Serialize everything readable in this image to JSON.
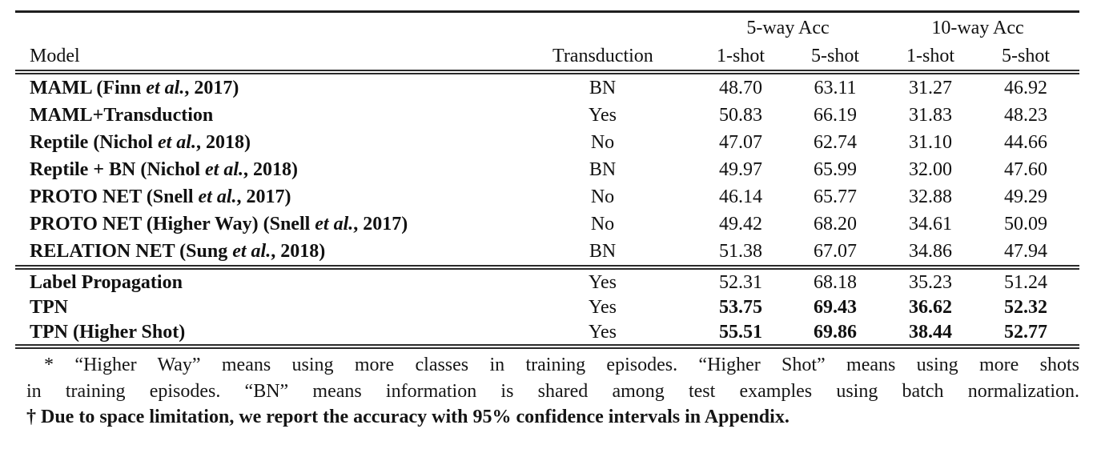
{
  "header": {
    "group_5way": "5-way Acc",
    "group_10way": "10-way Acc",
    "model": "Model",
    "transduction": "Transduction",
    "subcols": [
      "1-shot",
      "5-shot",
      "1-shot",
      "5-shot"
    ]
  },
  "table": {
    "sections": [
      {
        "rows": [
          {
            "model": {
              "pre": "MAML (Finn ",
              "etal": "et al.",
              "post": ", 2017)"
            },
            "transduction": "BN",
            "values": [
              "48.70",
              "63.11",
              "31.27",
              "46.92"
            ],
            "bold_values": false
          },
          {
            "model": {
              "pre": "MAML+Transduction",
              "etal": "",
              "post": ""
            },
            "transduction": "Yes",
            "values": [
              "50.83",
              "66.19",
              "31.83",
              "48.23"
            ],
            "bold_values": false
          },
          {
            "model": {
              "pre": "Reptile (Nichol ",
              "etal": "et al.",
              "post": ", 2018)"
            },
            "transduction": "No",
            "values": [
              "47.07",
              "62.74",
              "31.10",
              "44.66"
            ],
            "bold_values": false
          },
          {
            "model": {
              "pre": "Reptile + BN (Nichol ",
              "etal": "et al.",
              "post": ", 2018)"
            },
            "transduction": "BN",
            "values": [
              "49.97",
              "65.99",
              "32.00",
              "47.60"
            ],
            "bold_values": false
          },
          {
            "model": {
              "pre": "PROTO NET (Snell ",
              "etal": "et al.",
              "post": ", 2017)"
            },
            "transduction": "No",
            "values": [
              "46.14",
              "65.77",
              "32.88",
              "49.29"
            ],
            "bold_values": false
          },
          {
            "model": {
              "pre": "PROTO NET (Higher Way) (Snell ",
              "etal": "et al.",
              "post": ", 2017)"
            },
            "transduction": "No",
            "values": [
              "49.42",
              "68.20",
              "34.61",
              "50.09"
            ],
            "bold_values": false
          },
          {
            "model": {
              "pre": "RELATION NET (Sung ",
              "etal": "et al.",
              "post": ", 2018)"
            },
            "transduction": "BN",
            "values": [
              "51.38",
              "67.07",
              "34.86",
              "47.94"
            ],
            "bold_values": false
          }
        ]
      },
      {
        "rows": [
          {
            "model": {
              "pre": "Label Propagation",
              "etal": "",
              "post": ""
            },
            "transduction": "Yes",
            "values": [
              "52.31",
              "68.18",
              "35.23",
              "51.24"
            ],
            "bold_values": false
          },
          {
            "model": {
              "pre": "TPN",
              "etal": "",
              "post": ""
            },
            "transduction": "Yes",
            "values": [
              "53.75",
              "69.43",
              "36.62",
              "52.32"
            ],
            "bold_values": true
          },
          {
            "model": {
              "pre": "TPN (Higher Shot)",
              "etal": "",
              "post": ""
            },
            "transduction": "Yes",
            "values": [
              "55.51",
              "69.86",
              "38.44",
              "52.77"
            ],
            "bold_values": true
          }
        ]
      }
    ]
  },
  "footnote": {
    "line1": "* “Higher Way” means using more classes in training episodes. “Higher Shot” means using more shots",
    "line2": "in training episodes. “BN” means information is shared among test examples using batch normalization.",
    "line3": "† Due to space limitation, we report the accuracy with 95% confidence intervals in Appendix."
  },
  "colors": {
    "background": "#ffffff",
    "text": "#111111",
    "rule": "#222222"
  }
}
